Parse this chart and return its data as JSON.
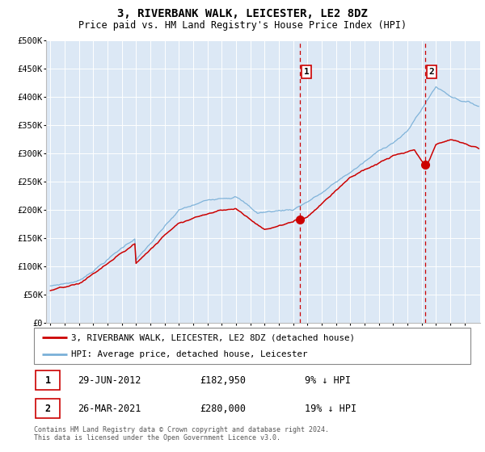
{
  "title": "3, RIVERBANK WALK, LEICESTER, LE2 8DZ",
  "subtitle": "Price paid vs. HM Land Registry's House Price Index (HPI)",
  "background_color": "#ffffff",
  "chart_bg_color": "#dce8f5",
  "chart_bg_color_right": "#dce8f5",
  "grid_color": "#ffffff",
  "hpi_color": "#7ab0d8",
  "price_color": "#cc0000",
  "marker_color": "#cc0000",
  "dashed_line_color": "#cc0000",
  "ylim": [
    0,
    500000
  ],
  "yticks": [
    0,
    50000,
    100000,
    150000,
    200000,
    250000,
    300000,
    350000,
    400000,
    450000,
    500000
  ],
  "ytick_labels": [
    "£0",
    "£50K",
    "£100K",
    "£150K",
    "£200K",
    "£250K",
    "£300K",
    "£350K",
    "£400K",
    "£450K",
    "£500K"
  ],
  "year_start": 1995,
  "year_end": 2025,
  "event1_date": 2012.5,
  "event1_label": "1",
  "event1_price": 182950,
  "event1_text": "29-JUN-2012",
  "event1_amount": "£182,950",
  "event1_pct": "9% ↓ HPI",
  "event2_date": 2021.25,
  "event2_label": "2",
  "event2_price": 280000,
  "event2_text": "26-MAR-2021",
  "event2_amount": "£280,000",
  "event2_pct": "19% ↓ HPI",
  "legend_line1": "3, RIVERBANK WALK, LEICESTER, LE2 8DZ (detached house)",
  "legend_line2": "HPI: Average price, detached house, Leicester",
  "footnote1": "Contains HM Land Registry data © Crown copyright and database right 2024.",
  "footnote2": "This data is licensed under the Open Government Licence v3.0."
}
